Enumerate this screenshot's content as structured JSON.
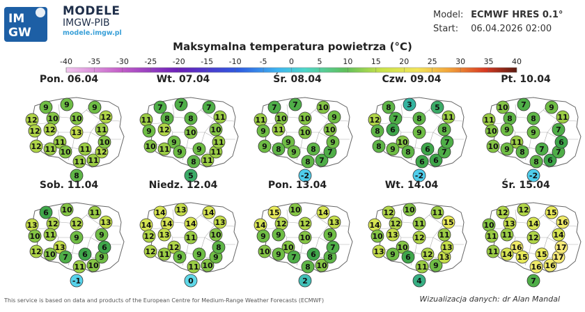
{
  "brand": {
    "title": "MODELE",
    "subtitle": "IMGW-PIB",
    "url": "modele.imgw.pl",
    "logo_text_top": "IM",
    "logo_text_bottom": "GW"
  },
  "meta": {
    "model_label": "Model:",
    "model_value": "ECMWF HRES 0.1°",
    "start_label": "Start:",
    "start_value": "06.04.2026 02:00"
  },
  "title": "Maksymalna temperatura powietrza (°C)",
  "scale": {
    "ticks": [
      "-40",
      "-35",
      "-30",
      "-25",
      "-20",
      "-15",
      "-10",
      "-5",
      "0",
      "5",
      "10",
      "15",
      "20",
      "25",
      "30",
      "35",
      "40"
    ]
  },
  "days": [
    {
      "label": "Pon. 06.04",
      "values": [
        9,
        9,
        9,
        12,
        10,
        10,
        12,
        12,
        12,
        11,
        13,
        11,
        12,
        11,
        10,
        11,
        11,
        11,
        12,
        10,
        8
      ]
    },
    {
      "label": "Wt. 07.04",
      "values": [
        7,
        7,
        7,
        11,
        8,
        8,
        11,
        9,
        12,
        9,
        10,
        10,
        10,
        11,
        9,
        9,
        8,
        11,
        11,
        11,
        5
      ]
    },
    {
      "label": "Śr. 08.04",
      "values": [
        7,
        7,
        10,
        11,
        10,
        10,
        9,
        9,
        11,
        9,
        10,
        10,
        9,
        8,
        9,
        8,
        8,
        7,
        7,
        9,
        -2
      ]
    },
    {
      "label": "Czw. 09.04",
      "values": [
        8,
        3,
        5,
        12,
        7,
        8,
        11,
        8,
        6,
        10,
        9,
        8,
        8,
        9,
        8,
        6,
        6,
        6,
        7,
        7,
        -2
      ]
    },
    {
      "label": "Pt. 10.04",
      "values": [
        10,
        7,
        9,
        11,
        8,
        8,
        11,
        10,
        9,
        11,
        9,
        7,
        10,
        9,
        8,
        7,
        8,
        6,
        7,
        6,
        -2
      ]
    },
    {
      "label": "Sob. 11.04",
      "values": [
        6,
        10,
        11,
        13,
        12,
        12,
        13,
        10,
        11,
        13,
        9,
        9,
        12,
        10,
        7,
        6,
        11,
        10,
        9,
        6,
        -1
      ]
    },
    {
      "label": "Niedz. 12.04",
      "values": [
        14,
        13,
        14,
        14,
        14,
        14,
        13,
        12,
        13,
        12,
        11,
        10,
        12,
        11,
        9,
        9,
        11,
        10,
        9,
        8,
        0
      ]
    },
    {
      "label": "Pon. 13.04",
      "values": [
        15,
        10,
        14,
        14,
        12,
        12,
        13,
        9,
        9,
        10,
        10,
        9,
        10,
        9,
        7,
        6,
        8,
        10,
        8,
        7,
        2
      ]
    },
    {
      "label": "Wt. 14.04",
      "values": [
        12,
        10,
        11,
        14,
        12,
        11,
        15,
        10,
        13,
        10,
        12,
        11,
        13,
        9,
        6,
        12,
        11,
        9,
        13,
        13,
        4
      ]
    },
    {
      "label": "Śr. 15.04",
      "values": [
        12,
        12,
        15,
        10,
        13,
        14,
        16,
        11,
        11,
        16,
        12,
        14,
        11,
        14,
        15,
        15,
        16,
        16,
        17,
        17,
        7
      ]
    }
  ],
  "footer": {
    "source": "This service is based on data and products of the European Centre for Medium-Range Weather Forecasts (ECMWF)",
    "credit": "Wizualizacja danych: dr Alan Mandal"
  }
}
